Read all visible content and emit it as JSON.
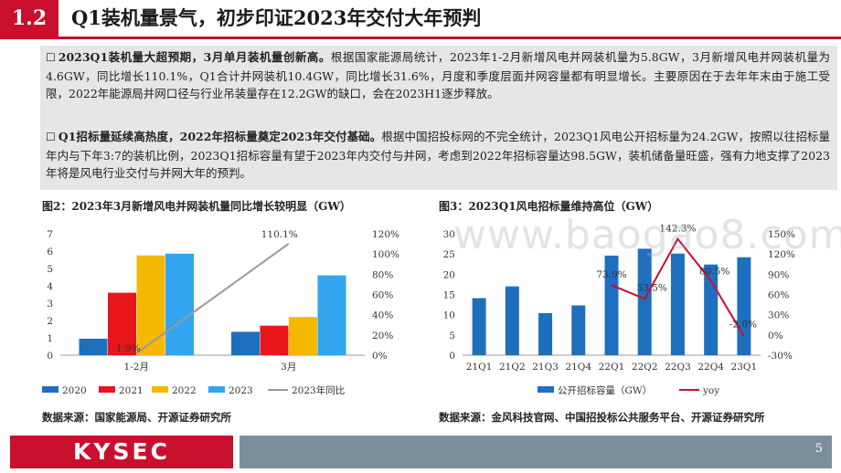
{
  "header": {
    "section_number": "1.2",
    "title": "Q1装机量景气，初步印证2023年交付大年预判"
  },
  "paragraphs": [
    {
      "bold": "2023Q1装机量大超预期，3月单月装机量创新高。",
      "text": "根据国家能源局统计，2023年1-2月新增风电并网装机量为5.8GW，3月新增风电并网装机量为4.6GW，同比增长110.1%，Q1合计并网装机10.4GW，同比增长31.6%，月度和季度层面并网容量都有明显增长。主要原因在于去年年末由于施工受限，2022年能源局并网口径与行业吊装量存在12.2GW的缺口，会在2023H1逐步释放。"
    },
    {
      "bold": "Q1招标量延续高热度，2022年招标量奠定2023年交付基础。",
      "text": "根据中国招投标网的不完全统计，2023Q1风电公开招标量为24.2GW，按照以往招标量年内与下年3:7的装机比例，2023Q1招标容量有望于2023年内交付与并网，考虑到2022年招标容量达98.5GW，装机储备量旺盛，强有力地支撑了2023年将是风电行业交付与并网大年的预判。"
    }
  ],
  "figure2": {
    "title": "图2：2023年3月新增风电并网装机量同比增长较明显（GW）",
    "source": "数据来源：国家能源局、开源证券研究所"
  },
  "figure3": {
    "title": "图3：2023Q1风电招标量维持高位（GW）",
    "source": "数据来源：金风科技官网、中国招投标公共服务平台、开源证券研究所"
  },
  "watermark": "www.baogao8.com",
  "footer": {
    "logo": "KYSEC",
    "page_number": "5"
  },
  "chart_data": [
    {
      "type": "bar",
      "categories": [
        "1-2月",
        "3月"
      ],
      "series": [
        {
          "name": "2020",
          "values": [
            0.95,
            1.35
          ],
          "color": "#1f6fbf"
        },
        {
          "name": "2021",
          "values": [
            3.6,
            1.7
          ],
          "color": "#e8151b"
        },
        {
          "name": "2022",
          "values": [
            5.75,
            2.2
          ],
          "color": "#f5b800"
        },
        {
          "name": "2023",
          "values": [
            5.85,
            4.6
          ],
          "color": "#33a4ef"
        }
      ],
      "line_series": {
        "name": "2023年同比",
        "values": [
          1.9,
          110.1
        ],
        "labels": [
          "1.9%",
          "110.1%"
        ],
        "color": "#999999",
        "axis": "right"
      },
      "ylim": [
        0,
        7
      ],
      "yticks": [
        "0",
        "1",
        "2",
        "3",
        "4",
        "5",
        "6",
        "7"
      ],
      "y2lim": [
        0,
        120
      ],
      "y2ticks": [
        "0%",
        "20%",
        "40%",
        "60%",
        "80%",
        "100%",
        "120%"
      ],
      "legend": "bottom"
    },
    {
      "type": "bar",
      "categories": [
        "21Q1",
        "21Q2",
        "21Q3",
        "21Q4",
        "22Q1",
        "22Q2",
        "22Q3",
        "22Q4",
        "23Q1"
      ],
      "series": [
        {
          "name": "公开招标容量（GW）",
          "values": [
            14.1,
            17.0,
            10.4,
            12.3,
            24.6,
            26.3,
            25.1,
            22.4,
            24.2
          ],
          "color": "#1f6fbf"
        }
      ],
      "line_series": {
        "name": "yoy",
        "x": [
          "22Q1",
          "22Q2",
          "22Q3",
          "22Q4",
          "23Q1"
        ],
        "values": [
          73.9,
          53.5,
          142.3,
          80.5,
          -2.0
        ],
        "labels": [
          "73.9%",
          "53.5%",
          "142.3%",
          "80.5%",
          "-2.0%"
        ],
        "color": "#c8102e",
        "axis": "right"
      },
      "ylim": [
        0,
        30
      ],
      "yticks": [
        "0",
        "5",
        "10",
        "15",
        "20",
        "25",
        "30"
      ],
      "y2lim": [
        -30,
        150
      ],
      "y2ticks": [
        "-30%",
        "0%",
        "30%",
        "60%",
        "90%",
        "120%",
        "150%"
      ],
      "legend": "bottom"
    }
  ]
}
